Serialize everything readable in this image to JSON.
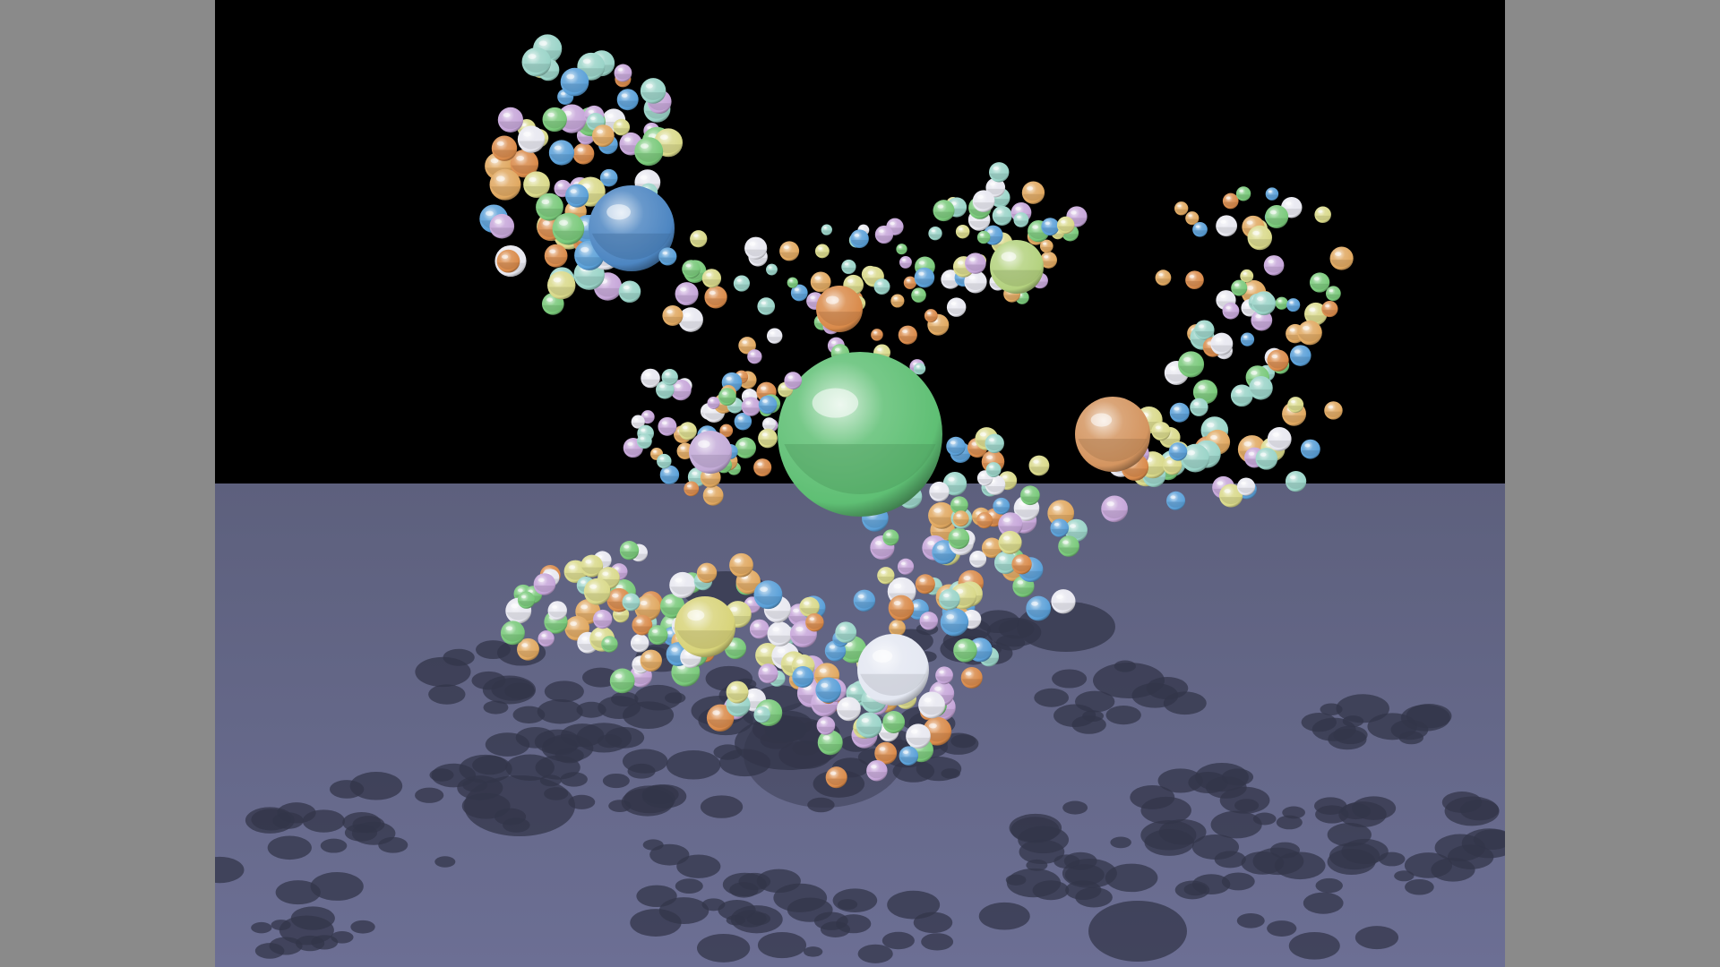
{
  "scene": {
    "letterbox_color": "#8a8a8a",
    "sky_color": "#000000",
    "floor_color_far": "#5d607d",
    "floor_color_near": "#6c6f94",
    "shadow_color": "#33354a",
    "palette": [
      "#5aa0d8",
      "#79c97a",
      "#d98a4a",
      "#d9d98a",
      "#c6a6d9",
      "#e8e8f0",
      "#9ad4c8",
      "#e0a860"
    ],
    "main_spheres": [
      {
        "name": "green-center",
        "color": "#5fbf74"
      },
      {
        "name": "blue-top-left",
        "color": "#4d86c2"
      },
      {
        "name": "orange-right",
        "color": "#d49560"
      },
      {
        "name": "yellow-green-top-right",
        "color": "#b4d27f"
      },
      {
        "name": "orange-upper-middle",
        "color": "#d98a4a"
      },
      {
        "name": "lavender-left",
        "color": "#c4acd8"
      },
      {
        "name": "yellow-lower-left",
        "color": "#d8d47a"
      },
      {
        "name": "white-lower-middle",
        "color": "#e4e8f2"
      }
    ]
  }
}
